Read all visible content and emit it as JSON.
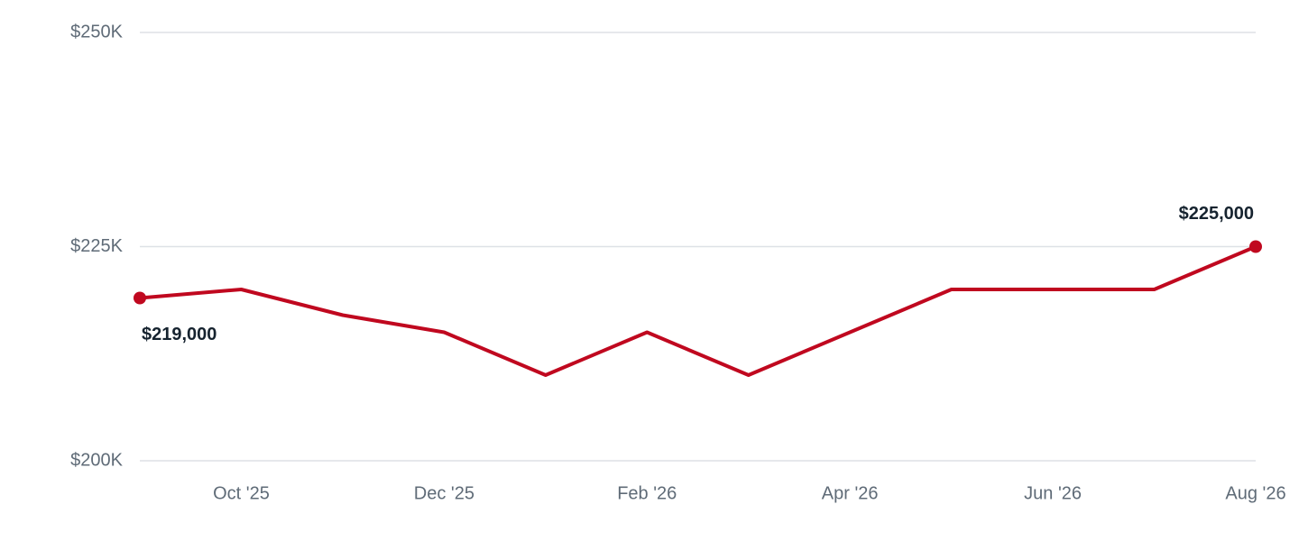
{
  "chart_data": {
    "type": "line",
    "categories": [
      null,
      "Oct '25",
      null,
      "Dec '25",
      null,
      "Feb '26",
      null,
      "Apr '26",
      null,
      "Jun '26",
      null,
      "Aug '26"
    ],
    "series": [
      {
        "color": "#c0081f",
        "values": [
          219000,
          220000,
          217000,
          215000,
          210000,
          215000,
          210000,
          215000,
          220000,
          220000,
          220000,
          225000
        ],
        "value_labels": [
          "$219,000",
          null,
          null,
          null,
          null,
          null,
          null,
          null,
          null,
          null,
          null,
          "$225,000"
        ]
      }
    ],
    "ylim": [
      200000,
      250000
    ],
    "yticks": [
      {
        "value": 200000,
        "label": "$200K"
      },
      {
        "value": 225000,
        "label": "$225K"
      },
      {
        "value": 250000,
        "label": "$250K"
      }
    ],
    "grid": true
  }
}
